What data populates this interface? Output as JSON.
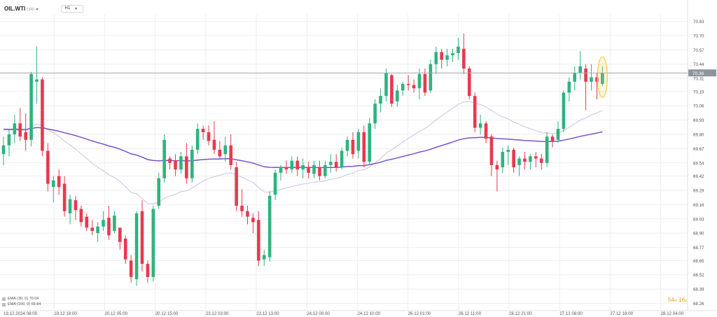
{
  "instrument": {
    "symbol": "OIL.WTI",
    "symbol_sub": "CFD",
    "dropdown_glyph": "▾",
    "timeframe": "H1",
    "timeframe_glyph": "▾"
  },
  "legend": [
    {
      "label": "EMA (30, 0) 70.04",
      "color": "#c9c2e6"
    },
    {
      "label": "EMA (100, 0) 69.84",
      "color": "#7a4fc0"
    }
  ],
  "countdown": {
    "minutes": "54",
    "min_unit": "m",
    "seconds": "16",
    "sec_unit": "s"
  },
  "colors": {
    "up": "#2fb37e",
    "down": "#e8394f",
    "ema30": "#d2cbea",
    "ema100": "#7b52c4",
    "grid": "#eeeeee",
    "price_line": "#a0a4aa",
    "highlight": "#f5c842"
  },
  "chart_data": {
    "type": "candlestick",
    "timeframe": "H1",
    "ylim": [
      68.26,
      70.9
    ],
    "y_ticks": [
      "70.83",
      "70.70",
      "70.57",
      "70.44",
      "70.31",
      "70.19",
      "70.06",
      "69.93",
      "69.80",
      "69.67",
      "69.54",
      "69.42",
      "69.29",
      "69.16",
      "69.03",
      "68.90",
      "68.77",
      "68.65",
      "68.52",
      "68.39",
      "68.26"
    ],
    "x_ticks": [
      "19.12.2024 08:00",
      "19.12 18:00",
      "20.12 05:00",
      "20.12 15:00",
      "23.12 03:00",
      "23.12 13:00",
      "24.12 00:00",
      "24.12 10:00",
      "26.12 01:00",
      "26.12 11:00",
      "26.12 21:00",
      "27.12 08:00",
      "27.12 18:00",
      "28.12 04:00"
    ],
    "current_price": "70.36",
    "ema30_last": 70.04,
    "ema100_last": 69.84,
    "candles": [
      [
        69.62,
        69.78,
        69.52,
        69.7
      ],
      [
        69.7,
        69.85,
        69.6,
        69.8
      ],
      [
        69.8,
        69.98,
        69.72,
        69.9
      ],
      [
        69.9,
        70.04,
        69.74,
        69.78
      ],
      [
        69.82,
        69.99,
        69.65,
        69.75
      ],
      [
        69.75,
        70.37,
        69.69,
        70.35
      ],
      [
        70.28,
        70.6,
        70.08,
        70.3
      ],
      [
        70.3,
        70.32,
        69.6,
        69.65
      ],
      [
        69.65,
        69.72,
        69.28,
        69.35
      ],
      [
        69.32,
        69.42,
        69.18,
        69.38
      ],
      [
        69.42,
        69.48,
        69.25,
        69.32
      ],
      [
        69.35,
        69.42,
        69.05,
        69.1
      ],
      [
        69.08,
        69.25,
        68.98,
        69.21
      ],
      [
        69.2,
        69.24,
        69.02,
        69.11
      ],
      [
        69.12,
        69.15,
        68.96,
        69.0
      ],
      [
        69.05,
        69.08,
        68.92,
        68.95
      ],
      [
        68.95,
        69.02,
        68.88,
        68.92
      ],
      [
        68.9,
        69.0,
        68.82,
        68.96
      ],
      [
        68.96,
        69.1,
        68.92,
        69.02
      ],
      [
        69.04,
        69.15,
        68.84,
        68.88
      ],
      [
        68.92,
        69.1,
        68.9,
        69.06
      ],
      [
        68.95,
        68.95,
        68.75,
        68.82
      ],
      [
        68.85,
        68.88,
        68.62,
        68.66
      ],
      [
        68.65,
        68.7,
        68.45,
        68.5
      ],
      [
        68.48,
        69.1,
        68.42,
        69.08
      ],
      [
        69.1,
        69.2,
        68.55,
        68.62
      ],
      [
        68.62,
        68.65,
        68.45,
        68.5
      ],
      [
        68.5,
        69.15,
        68.46,
        69.12
      ],
      [
        69.15,
        69.45,
        69.12,
        69.4
      ],
      [
        69.4,
        69.8,
        69.36,
        69.75
      ],
      [
        69.58,
        69.6,
        69.48,
        69.54
      ],
      [
        69.56,
        69.62,
        69.42,
        69.48
      ],
      [
        69.48,
        69.64,
        69.44,
        69.6
      ],
      [
        69.6,
        69.72,
        69.35,
        69.4
      ],
      [
        69.4,
        69.7,
        69.36,
        69.66
      ],
      [
        69.66,
        69.9,
        69.62,
        69.85
      ],
      [
        69.85,
        69.88,
        69.75,
        69.82
      ],
      [
        69.82,
        69.88,
        69.7,
        69.74
      ],
      [
        69.75,
        69.92,
        69.62,
        69.66
      ],
      [
        69.66,
        69.74,
        69.58,
        69.6
      ],
      [
        69.62,
        69.78,
        69.55,
        69.7
      ],
      [
        69.7,
        69.8,
        69.48,
        69.52
      ],
      [
        69.5,
        69.55,
        69.1,
        69.15
      ],
      [
        69.15,
        69.3,
        69.05,
        69.1
      ],
      [
        69.1,
        69.15,
        68.98,
        69.05
      ],
      [
        69.04,
        69.08,
        68.9,
        69.0
      ],
      [
        69.02,
        69.1,
        68.6,
        68.65
      ],
      [
        68.66,
        68.75,
        68.6,
        68.7
      ],
      [
        68.68,
        69.28,
        68.64,
        69.24
      ],
      [
        69.25,
        69.48,
        69.2,
        69.45
      ],
      [
        69.45,
        69.52,
        69.38,
        69.5
      ],
      [
        69.5,
        69.56,
        69.44,
        69.48
      ],
      [
        69.48,
        69.6,
        69.45,
        69.56
      ],
      [
        69.56,
        69.6,
        69.42,
        69.48
      ],
      [
        69.48,
        69.58,
        69.4,
        69.52
      ],
      [
        69.5,
        69.55,
        69.4,
        69.45
      ],
      [
        69.44,
        69.56,
        69.4,
        69.52
      ],
      [
        69.5,
        69.56,
        69.38,
        69.42
      ],
      [
        69.42,
        69.56,
        69.4,
        69.52
      ],
      [
        69.52,
        69.62,
        69.45,
        69.55
      ],
      [
        69.55,
        69.62,
        69.46,
        69.5
      ],
      [
        69.5,
        69.68,
        69.48,
        69.65
      ],
      [
        69.65,
        69.78,
        69.6,
        69.75
      ],
      [
        69.75,
        69.82,
        69.58,
        69.62
      ],
      [
        69.65,
        69.85,
        69.58,
        69.82
      ],
      [
        69.82,
        69.88,
        69.5,
        69.55
      ],
      [
        69.55,
        69.95,
        69.52,
        69.9
      ],
      [
        69.9,
        70.12,
        69.85,
        70.08
      ],
      [
        70.08,
        70.22,
        70.0,
        70.15
      ],
      [
        70.15,
        70.4,
        70.1,
        70.36
      ],
      [
        70.34,
        70.35,
        70.05,
        70.08
      ],
      [
        70.1,
        70.25,
        70.05,
        70.2
      ],
      [
        70.2,
        70.28,
        70.15,
        70.26
      ],
      [
        70.26,
        70.34,
        70.2,
        70.25
      ],
      [
        70.25,
        70.3,
        70.18,
        70.22
      ],
      [
        70.22,
        70.4,
        70.12,
        70.35
      ],
      [
        70.35,
        70.4,
        70.15,
        70.18
      ],
      [
        70.2,
        70.48,
        70.18,
        70.44
      ],
      [
        70.44,
        70.6,
        70.35,
        70.55
      ],
      [
        70.55,
        70.58,
        70.4,
        70.48
      ],
      [
        70.48,
        70.58,
        70.42,
        70.52
      ],
      [
        70.52,
        70.58,
        70.46,
        70.54
      ],
      [
        70.54,
        70.68,
        70.48,
        70.6
      ],
      [
        70.58,
        70.72,
        70.35,
        70.4
      ],
      [
        70.4,
        70.42,
        70.12,
        70.15
      ],
      [
        70.15,
        70.18,
        69.82,
        69.86
      ],
      [
        69.86,
        69.98,
        69.8,
        69.9
      ],
      [
        69.9,
        69.92,
        69.72,
        69.76
      ],
      [
        69.78,
        69.8,
        69.42,
        69.52
      ],
      [
        69.52,
        69.56,
        69.28,
        69.48
      ],
      [
        69.5,
        69.68,
        69.45,
        69.64
      ],
      [
        69.64,
        69.7,
        69.52,
        69.66
      ],
      [
        69.66,
        69.68,
        69.45,
        69.5
      ],
      [
        69.52,
        69.6,
        69.42,
        69.58
      ],
      [
        69.58,
        69.64,
        69.48,
        69.55
      ],
      [
        69.55,
        69.62,
        69.48,
        69.6
      ],
      [
        69.6,
        69.64,
        69.5,
        69.58
      ],
      [
        69.58,
        69.62,
        69.48,
        69.54
      ],
      [
        69.54,
        69.82,
        69.5,
        69.78
      ],
      [
        69.78,
        69.8,
        69.68,
        69.74
      ],
      [
        69.75,
        69.92,
        69.72,
        69.85
      ],
      [
        69.85,
        70.2,
        69.82,
        70.18
      ],
      [
        70.18,
        70.32,
        70.1,
        70.28
      ],
      [
        70.28,
        70.42,
        70.2,
        70.36
      ],
      [
        70.36,
        70.56,
        70.3,
        70.42
      ],
      [
        70.4,
        70.44,
        70.02,
        70.28
      ],
      [
        70.28,
        70.44,
        70.2,
        70.32
      ],
      [
        70.32,
        70.36,
        70.12,
        70.28
      ],
      [
        70.26,
        70.42,
        70.24,
        70.36
      ]
    ]
  }
}
